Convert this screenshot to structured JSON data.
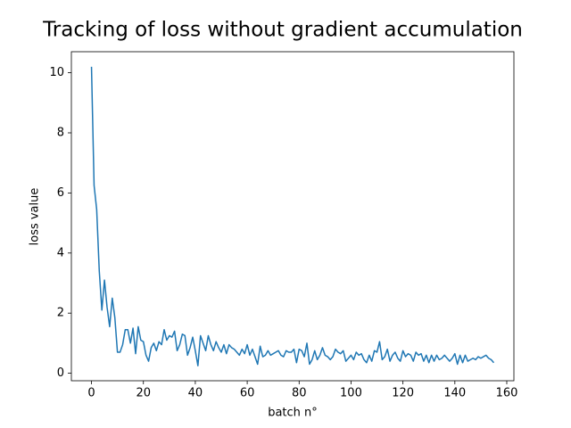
{
  "chart_data": {
    "type": "line",
    "title": "Tracking of loss without gradient accumulation",
    "xlabel": "batch n°",
    "ylabel": "loss value",
    "x": [
      0,
      1,
      2,
      3,
      4,
      5,
      6,
      7,
      8,
      9,
      10,
      11,
      12,
      13,
      14,
      15,
      16,
      17,
      18,
      19,
      20,
      21,
      22,
      23,
      24,
      25,
      26,
      27,
      28,
      29,
      30,
      31,
      32,
      33,
      34,
      35,
      36,
      37,
      38,
      39,
      40,
      41,
      42,
      43,
      44,
      45,
      46,
      47,
      48,
      49,
      50,
      51,
      52,
      53,
      54,
      55,
      56,
      57,
      58,
      59,
      60,
      61,
      62,
      63,
      64,
      65,
      66,
      67,
      68,
      69,
      70,
      71,
      72,
      73,
      74,
      75,
      76,
      77,
      78,
      79,
      80,
      81,
      82,
      83,
      84,
      85,
      86,
      87,
      88,
      89,
      90,
      91,
      92,
      93,
      94,
      95,
      96,
      97,
      98,
      99,
      100,
      101,
      102,
      103,
      104,
      105,
      106,
      107,
      108,
      109,
      110,
      111,
      112,
      113,
      114,
      115,
      116,
      117,
      118,
      119,
      120,
      121,
      122,
      123,
      124,
      125,
      126,
      127,
      128,
      129,
      130,
      131,
      132,
      133,
      134,
      135,
      136,
      137,
      138,
      139,
      140,
      141,
      142,
      143,
      144,
      145,
      146,
      147,
      148,
      149,
      150,
      151,
      152,
      153,
      154,
      155
    ],
    "series": [
      {
        "color": "#1f77b4",
        "values": [
          10.2,
          6.25,
          5.45,
          3.4,
          2.1,
          3.1,
          2.2,
          1.55,
          2.5,
          1.85,
          0.7,
          0.7,
          0.95,
          1.45,
          1.45,
          1.0,
          1.5,
          0.65,
          1.55,
          1.1,
          1.05,
          0.6,
          0.4,
          0.85,
          1.0,
          0.75,
          1.05,
          0.95,
          1.45,
          1.1,
          1.25,
          1.2,
          1.4,
          0.75,
          0.95,
          1.3,
          1.25,
          0.6,
          0.85,
          1.2,
          0.75,
          0.25,
          1.25,
          1.0,
          0.75,
          1.25,
          0.95,
          0.75,
          1.05,
          0.85,
          0.7,
          0.95,
          0.65,
          0.95,
          0.85,
          0.8,
          0.7,
          0.6,
          0.8,
          0.65,
          0.95,
          0.6,
          0.8,
          0.55,
          0.3,
          0.9,
          0.55,
          0.6,
          0.75,
          0.6,
          0.65,
          0.7,
          0.75,
          0.6,
          0.55,
          0.75,
          0.7,
          0.7,
          0.8,
          0.35,
          0.8,
          0.75,
          0.55,
          1.0,
          0.3,
          0.45,
          0.75,
          0.45,
          0.6,
          0.85,
          0.6,
          0.55,
          0.45,
          0.55,
          0.8,
          0.7,
          0.65,
          0.75,
          0.4,
          0.5,
          0.6,
          0.45,
          0.7,
          0.6,
          0.65,
          0.45,
          0.35,
          0.6,
          0.4,
          0.75,
          0.7,
          1.05,
          0.45,
          0.55,
          0.8,
          0.4,
          0.6,
          0.7,
          0.5,
          0.4,
          0.75,
          0.55,
          0.65,
          0.6,
          0.4,
          0.7,
          0.6,
          0.65,
          0.4,
          0.6,
          0.35,
          0.6,
          0.4,
          0.6,
          0.45,
          0.5,
          0.6,
          0.5,
          0.4,
          0.5,
          0.65,
          0.3,
          0.6,
          0.35,
          0.6,
          0.4,
          0.45,
          0.5,
          0.45,
          0.55,
          0.5,
          0.55,
          0.6,
          0.5,
          0.45,
          0.35
        ]
      }
    ],
    "xlim": [
      -7.75,
      162.75
    ],
    "ylim": [
      -0.25,
      10.7
    ],
    "xticks": [
      0,
      20,
      40,
      60,
      80,
      100,
      120,
      140,
      160
    ],
    "yticks": [
      0,
      2,
      4,
      6,
      8,
      10
    ]
  }
}
